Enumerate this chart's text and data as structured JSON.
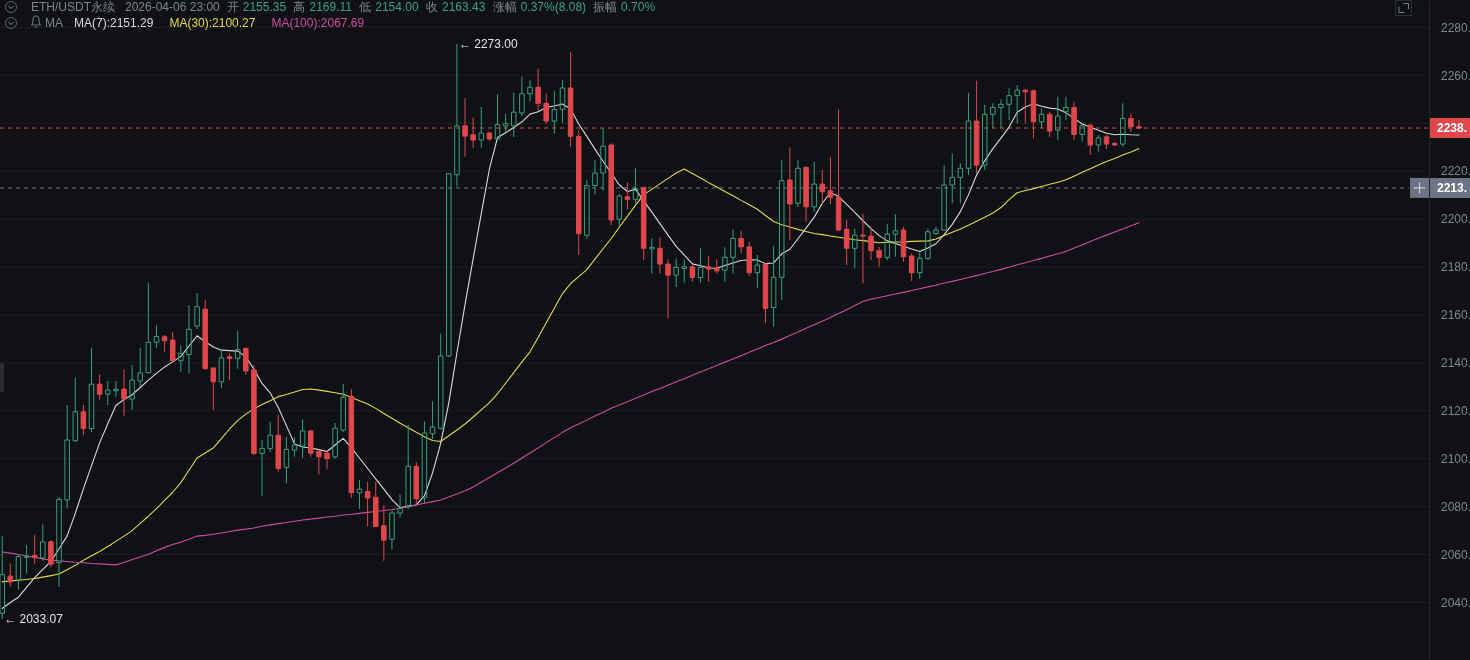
{
  "chart_data": {
    "type": "candlestick",
    "title": "ETH/USDT永续",
    "subtitle": "2026-04-06 23:00",
    "annotations": [
      "开 2155.35",
      "高 2169.11",
      "低 2154.00",
      "收 2163.43",
      "涨幅 0.37%(8.08)",
      "振幅 0.70%",
      "← 2273.00",
      "← 2033.07",
      "2238.",
      "2213."
    ],
    "legend_title": "MA",
    "legend": "top left",
    "grid": "y",
    "tick_labels": "y",
    "ylim": [
      2016,
      2291
    ],
    "yticks": [
      {
        "value": 2040,
        "label": "2040."
      },
      {
        "value": 2060,
        "label": "2060."
      },
      {
        "value": 2080,
        "label": "2080."
      },
      {
        "value": 2100,
        "label": "2100."
      },
      {
        "value": 2120,
        "label": "2120."
      },
      {
        "value": 2140,
        "label": "2140."
      },
      {
        "value": 2160,
        "label": "2160."
      },
      {
        "value": 2180,
        "label": "2180."
      },
      {
        "value": 2200,
        "label": "2200."
      },
      {
        "value": 2220,
        "label": "2220."
      },
      {
        "value": 2240,
        "label": null
      },
      {
        "value": 2260,
        "label": "2260."
      },
      {
        "value": 2280,
        "label": "2280."
      }
    ],
    "ref_lines": [
      {
        "axis": "y",
        "value": 2238,
        "color": "#e0474c",
        "line_style": "dashed"
      },
      {
        "axis": "y",
        "value": 2213,
        "color": "#6c7486",
        "line_style": "dashed"
      }
    ],
    "categories": [
      null,
      null,
      null,
      null,
      null,
      null,
      null,
      null,
      null,
      null,
      null,
      null,
      null,
      null,
      null,
      null,
      null,
      null,
      null,
      null,
      null,
      null,
      null,
      null,
      null,
      null,
      null,
      null,
      null,
      null,
      null,
      null,
      null,
      null,
      null,
      null,
      null,
      null,
      null,
      null,
      null,
      null,
      null,
      null,
      null,
      null,
      null,
      null,
      null,
      null,
      null,
      null,
      null,
      null,
      null,
      null,
      null,
      null,
      null,
      null,
      null,
      null,
      null,
      null,
      null,
      null,
      null,
      null,
      null,
      null,
      null,
      null,
      null,
      null,
      null,
      null,
      null,
      null,
      null,
      null,
      null,
      null,
      null,
      null,
      null,
      null,
      null,
      null,
      null,
      null,
      null,
      null,
      null,
      null,
      null,
      null,
      null,
      null,
      null,
      null,
      null,
      null,
      null,
      null,
      null,
      null,
      null,
      null,
      null,
      null,
      null,
      null,
      null,
      null,
      null,
      null,
      null,
      null,
      null,
      null,
      null,
      null,
      null,
      null,
      null,
      null,
      null,
      null,
      null,
      null,
      null,
      null,
      null,
      null,
      null,
      null,
      null,
      null,
      null,
      null,
      null
    ],
    "ohlc": [
      [
        2035.5,
        2067.6,
        2033.07,
        2051.6
      ],
      [
        2051.0,
        2056.3,
        2046.5,
        2048.6
      ],
      [
        2049.4,
        2060.0,
        2045.3,
        2059.1
      ],
      [
        2058.8,
        2063.9,
        2052.0,
        2059.3
      ],
      [
        2059.6,
        2068.1,
        2056.0,
        2058.7
      ],
      [
        2058.6,
        2072.5,
        2057.3,
        2065.3
      ],
      [
        2065.3,
        2066.0,
        2054.7,
        2056.0
      ],
      [
        2056.6,
        2084.1,
        2046.5,
        2083.0
      ],
      [
        2082.8,
        2122.4,
        2079.3,
        2107.8
      ],
      [
        2107.5,
        2133.9,
        2107.0,
        2119.6
      ],
      [
        2119.6,
        2122.4,
        2109.8,
        2112.6
      ],
      [
        2112.6,
        2146.3,
        2111.0,
        2131.1
      ],
      [
        2131.1,
        2135.3,
        2124.6,
        2126.9
      ],
      [
        2127.0,
        2132.4,
        2122.4,
        2128.6
      ],
      [
        2128.4,
        2132.4,
        2125.9,
        2129.0
      ],
      [
        2129.1,
        2137.3,
        2117.9,
        2124.9
      ],
      [
        2124.9,
        2139.1,
        2120.3,
        2132.8
      ],
      [
        2132.4,
        2146.3,
        2130.0,
        2135.8
      ],
      [
        2135.9,
        2173.5,
        2135.6,
        2148.6
      ],
      [
        2148.6,
        2155.7,
        2146.3,
        2151.0
      ],
      [
        2150.9,
        2151.6,
        2144.6,
        2149.2
      ],
      [
        2149.5,
        2153.0,
        2139.9,
        2140.9
      ],
      [
        2140.9,
        2147.4,
        2136.3,
        2143.9
      ],
      [
        2143.5,
        2164.1,
        2135.6,
        2154.0
      ],
      [
        2155.35,
        2169.11,
        2154.0,
        2163.43
      ],
      [
        2162.4,
        2166.2,
        2137.0,
        2137.6
      ],
      [
        2137.9,
        2138.0,
        2120.3,
        2132.1
      ],
      [
        2132.1,
        2145.6,
        2129.5,
        2142.1
      ],
      [
        2142.5,
        2143.9,
        2132.8,
        2141.8
      ],
      [
        2141.9,
        2153.4,
        2137.6,
        2145.6
      ],
      [
        2146.0,
        2146.5,
        2135.0,
        2136.6
      ],
      [
        2137.0,
        2139.1,
        2101.5,
        2102.2
      ],
      [
        2102.2,
        2107.8,
        2084.4,
        2104.3
      ],
      [
        2104.3,
        2115.4,
        2102.9,
        2109.8
      ],
      [
        2109.8,
        2118.2,
        2094.6,
        2095.9
      ],
      [
        2096.4,
        2109.1,
        2089.7,
        2103.9
      ],
      [
        2103.6,
        2109.1,
        2100.8,
        2105.7
      ],
      [
        2105.3,
        2116.4,
        2100.2,
        2111.6
      ],
      [
        2111.6,
        2112.0,
        2100.8,
        2102.3
      ],
      [
        2103.0,
        2103.8,
        2093.4,
        2100.8
      ],
      [
        2102.3,
        2103.0,
        2095.6,
        2100.0
      ],
      [
        2100.8,
        2114.9,
        2100.0,
        2112.7
      ],
      [
        2111.9,
        2131.3,
        2111.2,
        2125.7
      ],
      [
        2126.1,
        2129.0,
        2083.6,
        2085.8
      ],
      [
        2085.8,
        2091.1,
        2079.1,
        2087.3
      ],
      [
        2086.3,
        2090.3,
        2071.7,
        2083.6
      ],
      [
        2083.9,
        2090.3,
        2071.5,
        2071.7
      ],
      [
        2072.0,
        2080.6,
        2057.4,
        2066.0
      ],
      [
        2066.4,
        2078.4,
        2062.0,
        2077.3
      ],
      [
        2077.3,
        2085.1,
        2075.4,
        2079.2
      ],
      [
        2079.9,
        2114.2,
        2079.1,
        2096.8
      ],
      [
        2096.8,
        2098.7,
        2080.6,
        2083.3
      ],
      [
        2083.6,
        2115.6,
        2081.4,
        2110.7
      ],
      [
        2110.4,
        2123.9,
        2108.2,
        2113.2
      ],
      [
        2112.7,
        2152.2,
        2112.2,
        2142.9
      ],
      [
        2142.9,
        2219.0,
        2142.5,
        2218.9
      ],
      [
        2218.5,
        2273.0,
        2213.6,
        2238.9
      ],
      [
        2238.9,
        2250.5,
        2226.0,
        2234.6
      ],
      [
        2235.2,
        2242.4,
        2229.7,
        2233.0
      ],
      [
        2233.0,
        2246.8,
        2229.7,
        2235.9
      ],
      [
        2235.9,
        2236.5,
        2232.7,
        2233.4
      ],
      [
        2233.4,
        2252.0,
        2232.7,
        2239.4
      ],
      [
        2238.9,
        2243.9,
        2236.4,
        2239.8
      ],
      [
        2238.9,
        2252.8,
        2234.2,
        2244.6
      ],
      [
        2244.3,
        2259.5,
        2243.1,
        2252.3
      ],
      [
        2252.3,
        2258.0,
        2249.1,
        2255.0
      ],
      [
        2255.0,
        2262.8,
        2245.3,
        2248.3
      ],
      [
        2248.3,
        2252.3,
        2239.8,
        2240.9
      ],
      [
        2240.9,
        2253.5,
        2235.6,
        2245.8
      ],
      [
        2245.8,
        2258.0,
        2240.1,
        2254.7
      ],
      [
        2254.7,
        2269.7,
        2230.0,
        2234.5
      ],
      [
        2234.5,
        2237.1,
        2185.0,
        2193.9
      ],
      [
        2193.2,
        2216.3,
        2191.7,
        2214.0
      ],
      [
        2214.0,
        2224.5,
        2210.3,
        2219.2
      ],
      [
        2219.2,
        2237.9,
        2211.8,
        2230.4
      ],
      [
        2230.9,
        2231.6,
        2197.5,
        2199.6
      ],
      [
        2199.9,
        2210.5,
        2196.8,
        2209.6
      ],
      [
        2209.3,
        2215.2,
        2204.0,
        2208.2
      ],
      [
        2208.2,
        2221.2,
        2206.6,
        2212.8
      ],
      [
        2213.2,
        2213.5,
        2182.9,
        2187.8
      ],
      [
        2187.5,
        2191.9,
        2177.3,
        2188.2
      ],
      [
        2187.8,
        2192.4,
        2177.3,
        2181.2
      ],
      [
        2181.2,
        2183.2,
        2158.6,
        2176.6
      ],
      [
        2176.6,
        2183.6,
        2171.7,
        2179.8
      ],
      [
        2179.4,
        2183.2,
        2173.4,
        2180.1
      ],
      [
        2180.1,
        2180.8,
        2173.8,
        2175.6
      ],
      [
        2175.6,
        2187.8,
        2173.4,
        2179.8
      ],
      [
        2180.1,
        2184.6,
        2173.8,
        2179.1
      ],
      [
        2179.4,
        2183.2,
        2177.3,
        2178.4
      ],
      [
        2178.7,
        2188.2,
        2173.8,
        2184.0
      ],
      [
        2184.0,
        2195.7,
        2177.3,
        2191.9
      ],
      [
        2191.9,
        2195.1,
        2185.7,
        2188.4
      ],
      [
        2188.4,
        2190.5,
        2176.2,
        2177.6
      ],
      [
        2177.6,
        2185.0,
        2171.1,
        2180.8
      ],
      [
        2181.2,
        2181.5,
        2156.5,
        2162.7
      ],
      [
        2163.1,
        2188.7,
        2155.1,
        2175.7
      ],
      [
        2175.7,
        2224.6,
        2166.2,
        2216.0
      ],
      [
        2216.3,
        2229.9,
        2191.2,
        2206.3
      ],
      [
        2206.6,
        2224.6,
        2205.1,
        2221.2
      ],
      [
        2221.6,
        2222.0,
        2198.9,
        2205.1
      ],
      [
        2205.1,
        2223.9,
        2203.0,
        2214.6
      ],
      [
        2214.6,
        2220.5,
        2206.6,
        2211.4
      ],
      [
        2211.8,
        2226.0,
        2206.3,
        2209.1
      ],
      [
        2209.1,
        2245.8,
        2195.0,
        2195.4
      ],
      [
        2195.7,
        2199.6,
        2180.8,
        2187.8
      ],
      [
        2187.8,
        2196.1,
        2179.4,
        2193.3
      ],
      [
        2193.3,
        2202.4,
        2173.2,
        2192.9
      ],
      [
        2192.9,
        2196.8,
        2182.9,
        2186.8
      ],
      [
        2186.8,
        2188.4,
        2180.1,
        2184.0
      ],
      [
        2184.0,
        2197.9,
        2182.9,
        2193.7
      ],
      [
        2193.7,
        2202.1,
        2184.3,
        2195.1
      ],
      [
        2195.4,
        2196.8,
        2182.2,
        2184.3
      ],
      [
        2184.6,
        2185.7,
        2174.2,
        2177.6
      ],
      [
        2177.6,
        2187.1,
        2175.2,
        2183.6
      ],
      [
        2183.6,
        2196.1,
        2183.0,
        2194.7
      ],
      [
        2194.0,
        2196.8,
        2193.3,
        2195.4
      ],
      [
        2195.4,
        2222.5,
        2195.0,
        2214.2
      ],
      [
        2214.2,
        2227.4,
        2206.6,
        2217.4
      ],
      [
        2217.4,
        2223.2,
        2206.6,
        2221.2
      ],
      [
        2221.2,
        2252.7,
        2218.4,
        2240.9
      ],
      [
        2240.9,
        2257.7,
        2219.1,
        2222.5
      ],
      [
        2222.5,
        2247.6,
        2220.5,
        2243.7
      ],
      [
        2243.7,
        2248.3,
        2237.9,
        2246.6
      ],
      [
        2246.6,
        2249.9,
        2237.9,
        2247.9
      ],
      [
        2247.9,
        2254.5,
        2241.3,
        2251.5
      ],
      [
        2251.5,
        2255.9,
        2239.9,
        2253.8
      ],
      [
        2253.8,
        2254.2,
        2239.9,
        2253.1
      ],
      [
        2253.5,
        2254.1,
        2233.7,
        2240.6
      ],
      [
        2240.6,
        2246.2,
        2237.9,
        2243.7
      ],
      [
        2243.7,
        2244.8,
        2234.3,
        2236.7
      ],
      [
        2237.1,
        2251.0,
        2233.0,
        2243.0
      ],
      [
        2244.8,
        2251.0,
        2241.3,
        2246.6
      ],
      [
        2246.6,
        2249.0,
        2233.0,
        2235.3
      ],
      [
        2235.3,
        2239.9,
        2232.3,
        2238.9
      ],
      [
        2239.2,
        2239.9,
        2226.7,
        2230.9
      ],
      [
        2230.9,
        2235.0,
        2228.1,
        2233.9
      ],
      [
        2234.3,
        2235.0,
        2229.2,
        2231.3
      ],
      [
        2231.6,
        2232.2,
        2230.5,
        2230.9
      ],
      [
        2231.3,
        2248.3,
        2230.2,
        2242.0
      ],
      [
        2242.0,
        2244.1,
        2236.4,
        2238.5
      ],
      [
        2238.5,
        2241.3,
        2237.5,
        2238.0
      ]
    ],
    "colors": [
      "#33a17c",
      "#e0474c",
      "#33a17c",
      "#33a17c",
      "#e0474c",
      "#33a17c",
      "#e0474c",
      "#33a17c",
      "#33a17c",
      "#33a17c",
      "#e0474c",
      "#33a17c",
      "#e0474c",
      "#33a17c",
      "#33a17c",
      "#e0474c",
      "#33a17c",
      "#33a17c",
      "#33a17c",
      "#33a17c",
      "#e0474c",
      "#e0474c",
      "#33a17c",
      "#33a17c",
      "#33a17c",
      "#e0474c",
      "#e0474c",
      "#33a17c",
      "#e0474c",
      "#33a17c",
      "#e0474c",
      "#e0474c",
      "#33a17c",
      "#33a17c",
      "#e0474c",
      "#33a17c",
      "#33a17c",
      "#33a17c",
      "#e0474c",
      "#e0474c",
      "#e0474c",
      "#33a17c",
      "#33a17c",
      "#e0474c",
      "#33a17c",
      "#e0474c",
      "#e0474c",
      "#e0474c",
      "#33a17c",
      "#33a17c",
      "#33a17c",
      "#e0474c",
      "#33a17c",
      "#33a17c",
      "#33a17c",
      "#33a17c",
      "#33a17c",
      "#e0474c",
      "#e0474c",
      "#33a17c",
      "#e0474c",
      "#33a17c",
      "#33a17c",
      "#33a17c",
      "#33a17c",
      "#33a17c",
      "#e0474c",
      "#e0474c",
      "#33a17c",
      "#33a17c",
      "#e0474c",
      "#e0474c",
      "#33a17c",
      "#33a17c",
      "#33a17c",
      "#e0474c",
      "#33a17c",
      "#e0474c",
      "#33a17c",
      "#e0474c",
      "#33a17c",
      "#e0474c",
      "#e0474c",
      "#33a17c",
      "#33a17c",
      "#e0474c",
      "#33a17c",
      "#e0474c",
      "#e0474c",
      "#33a17c",
      "#33a17c",
      "#e0474c",
      "#e0474c",
      "#33a17c",
      "#e0474c",
      "#33a17c",
      "#33a17c",
      "#e0474c",
      "#33a17c",
      "#e0474c",
      "#33a17c",
      "#e0474c",
      "#e0474c",
      "#e0474c",
      "#e0474c",
      "#33a17c",
      "#e0474c",
      "#e0474c",
      "#e0474c",
      "#33a17c",
      "#33a17c",
      "#e0474c",
      "#e0474c",
      "#33a17c",
      "#33a17c",
      "#33a17c",
      "#33a17c",
      "#33a17c",
      "#33a17c",
      "#33a17c",
      "#e0474c",
      "#33a17c",
      "#33a17c",
      "#33a17c",
      "#33a17c",
      "#33a17c",
      "#e0474c",
      "#e0474c",
      "#33a17c",
      "#e0474c",
      "#33a17c",
      "#33a17c",
      "#e0474c",
      "#33a17c",
      "#e0474c",
      "#33a17c",
      "#e0474c",
      "#e0474c",
      "#33a17c",
      "#e0474c",
      "#e0474c"
    ],
    "series": [
      {
        "name": "MA(7):2151.29",
        "type": "line",
        "color": "#d9d9d9",
        "values": [
          2037.5,
          2040.0,
          2042.2,
          2046.3,
          2050.4,
          2053.8,
          2057.1,
          2062.4,
          2067.8,
          2077.2,
          2087.4,
          2097.1,
          2106.6,
          2114.6,
          2122.2,
          2124.7,
          2126.7,
          2129.7,
          2132.8,
          2135.6,
          2138.3,
          2140.4,
          2142.7,
          2147.0,
          2151.3,
          2148.8,
          2146.6,
          2145.3,
          2145.1,
          2144.9,
          2142.5,
          2137.4,
          2131.4,
          2127.5,
          2121.4,
          2113.8,
          2106.1,
          2104.9,
          2104.5,
          2103.8,
          2103.0,
          2105.7,
          2108.5,
          2104.5,
          2100.3,
          2095.9,
          2091.6,
          2087.3,
          2082.9,
          2079.5,
          2080.2,
          2080.7,
          2084.5,
          2094.1,
          2106.4,
          2123.3,
          2144.2,
          2164.4,
          2183.5,
          2202.3,
          2220.9,
          2234.0,
          2236.0,
          2238.2,
          2240.6,
          2243.8,
          2244.8,
          2246.6,
          2247.2,
          2248.0,
          2245.9,
          2239.7,
          2234.5,
          2229.2,
          2224.1,
          null,
          2214.2,
          2211.5,
          2212.4,
          2207.6,
          2202.9,
          2198.1,
          2193.3,
          2188.6,
          2185.0,
          2181.3,
          2180.5,
          2179.6,
          2179.5,
          2180.6,
          2181.7,
          2182.7,
          2183.0,
          2182.9,
          2181.4,
          2181.7,
          2185.5,
          2187.4,
          2191.8,
          2196.2,
          2200.8,
          2206.6,
          2211.1,
          2209.4,
          2206.1,
          2202.8,
          2199.3,
          2196.0,
          2193.1,
          2190.9,
          2189.8,
          2188.7,
          2187.5,
          2186.5,
          2187.9,
          2189.7,
          2193.5,
          2197.8,
          2203.1,
          2210.1,
          2218.4,
          2224.3,
          2229.4,
          2233.8,
          2238.4,
          2244.6,
          2246.8,
          2248.1,
          2247.1,
          2246.3,
          2245.9,
          2244.4,
          2242.0,
          2239.7,
          2238.4,
          2237.1,
          2235.8,
          2235.2,
          2235.4,
          2235.2,
          2235.1
        ]
      },
      {
        "name": "MA(30):2100.27",
        "type": "line",
        "color": "#e3d94a",
        "values": [
          2048.6,
          2049.0,
          2049.3,
          2049.6,
          2050.0,
          2050.6,
          2051.2,
          2051.9,
          2053.7,
          2055.5,
          2057.6,
          2059.5,
          2061.3,
          2063.4,
          2065.5,
          2067.7,
          2070.0,
          2073.0,
          2076.0,
          2079.2,
          2082.6,
          2086.0,
          2090.0,
          2095.2,
          2100.3,
          2102.4,
          2104.5,
          2108.4,
          2112.4,
          2115.9,
          2118.6,
          2120.8,
          2122.6,
          2124.2,
          2125.9,
          2126.8,
          2127.8,
          2128.9,
          2129.1,
          2128.6,
          2128.1,
          2127.5,
          2126.9,
          2125.5,
          2124.2,
          2122.8,
          2121.0,
          2118.9,
          2116.9,
          2114.8,
          2112.9,
          2111.0,
          2109.2,
          2107.6,
          2107.2,
          2109.6,
          2112.0,
          2114.5,
          2117.4,
          2120.4,
          2123.4,
          2127.1,
          2131.5,
          2135.9,
          2140.4,
          2144.6,
          2150.6,
          2156.7,
          2162.8,
          2168.9,
          2173.1,
          2176.0,
          2178.9,
          2183.3,
          2187.6,
          2191.9,
          2196.6,
          2201.2,
          2205.8,
          2210.2,
          2212.4,
          2214.7,
          2217.0,
          2219.2,
          2220.9,
          2219.0,
          2217.1,
          2215.2,
          2213.4,
          2211.5,
          2209.7,
          2207.8,
          2206.0,
          2204.1,
          2201.5,
          2199.0,
          2197.6,
          2196.7,
          2195.7,
          2194.8,
          2194.0,
          2193.5,
          2192.9,
          2192.4,
          2191.9,
          2191.4,
          2191.0,
          2190.6,
          2190.1,
          2190.3,
          2190.4,
          2190.5,
          2190.7,
          2190.8,
          2190.9,
          2191.7,
          2193.1,
          2194.5,
          2195.9,
          2197.4,
          2199.1,
          2200.8,
          2202.5,
          2204.8,
          2208.1,
          2211.0,
          2211.9,
          2212.7,
          2213.6,
          2214.5,
          2215.4,
          2216.4,
          2217.9,
          2219.5,
          2221.0,
          2222.6,
          2224.0,
          2225.3,
          2226.7,
          2228.0,
          2229.4
        ]
      },
      {
        "name": "MA(100):2067.69",
        "type": "line",
        "color": "#cf4aa3",
        "values": [
          2061.1,
          2060.6,
          2060.0,
          2059.4,
          2058.8,
          2058.2,
          2057.6,
          2057.4,
          2057.1,
          2056.8,
          2056.6,
          2056.3,
          2056.1,
          2055.9,
          2055.7,
          2056.7,
          2057.9,
          2059.0,
          2060.1,
          2061.6,
          2063.0,
          2064.2,
          2065.2,
          2066.4,
          2067.7,
          2068.0,
          2068.5,
          2069.0,
          2069.6,
          2070.2,
          2070.6,
          2071.1,
          2071.8,
          2072.4,
          2072.9,
          2073.4,
          2073.9,
          2074.4,
          2074.8,
          2075.2,
          2075.7,
          2076.0,
          2076.5,
          2076.8,
          2077.2,
          2077.6,
          2078.0,
          2078.4,
          2078.8,
          2079.3,
          2080.0,
          2080.7,
          2081.4,
          2082.1,
          2082.8,
          2084.0,
          2085.3,
          2086.6,
          2088.2,
          2090.2,
          2092.2,
          2094.1,
          2096.1,
          2098.1,
          2100.3,
          2102.4,
          2104.5,
          2106.7,
          2108.8,
          2111.0,
          2112.9,
          2114.5,
          2116.1,
          2117.8,
          2119.4,
          2121.1,
          2122.4,
          2123.8,
          2125.2,
          2126.6,
          2128.0,
          2129.3,
          2130.7,
          2132.1,
          2133.4,
          2134.8,
          2136.2,
          2137.5,
          2138.9,
          2140.3,
          2141.6,
          2143.0,
          2144.4,
          2145.8,
          2147.2,
          2148.5,
          2149.9,
          2151.4,
          2152.9,
          2154.4,
          2155.9,
          2157.4,
          2158.9,
          2160.6,
          2162.2,
          2163.9,
          2165.6,
          2166.6,
          2167.3,
          2168.0,
          2168.7,
          2169.4,
          2170.2,
          2170.9,
          2171.7,
          2172.4,
          2173.3,
          2174.0,
          2174.8,
          2175.6,
          2176.4,
          2177.3,
          2178.1,
          2179.0,
          2179.9,
          2180.9,
          2181.8,
          2182.7,
          2183.6,
          2184.6,
          2185.5,
          2186.5,
          2187.9,
          2189.2,
          2190.6,
          2192.0,
          2193.3,
          2194.6,
          2195.9,
          2197.2,
          2198.5
        ]
      }
    ]
  }
}
